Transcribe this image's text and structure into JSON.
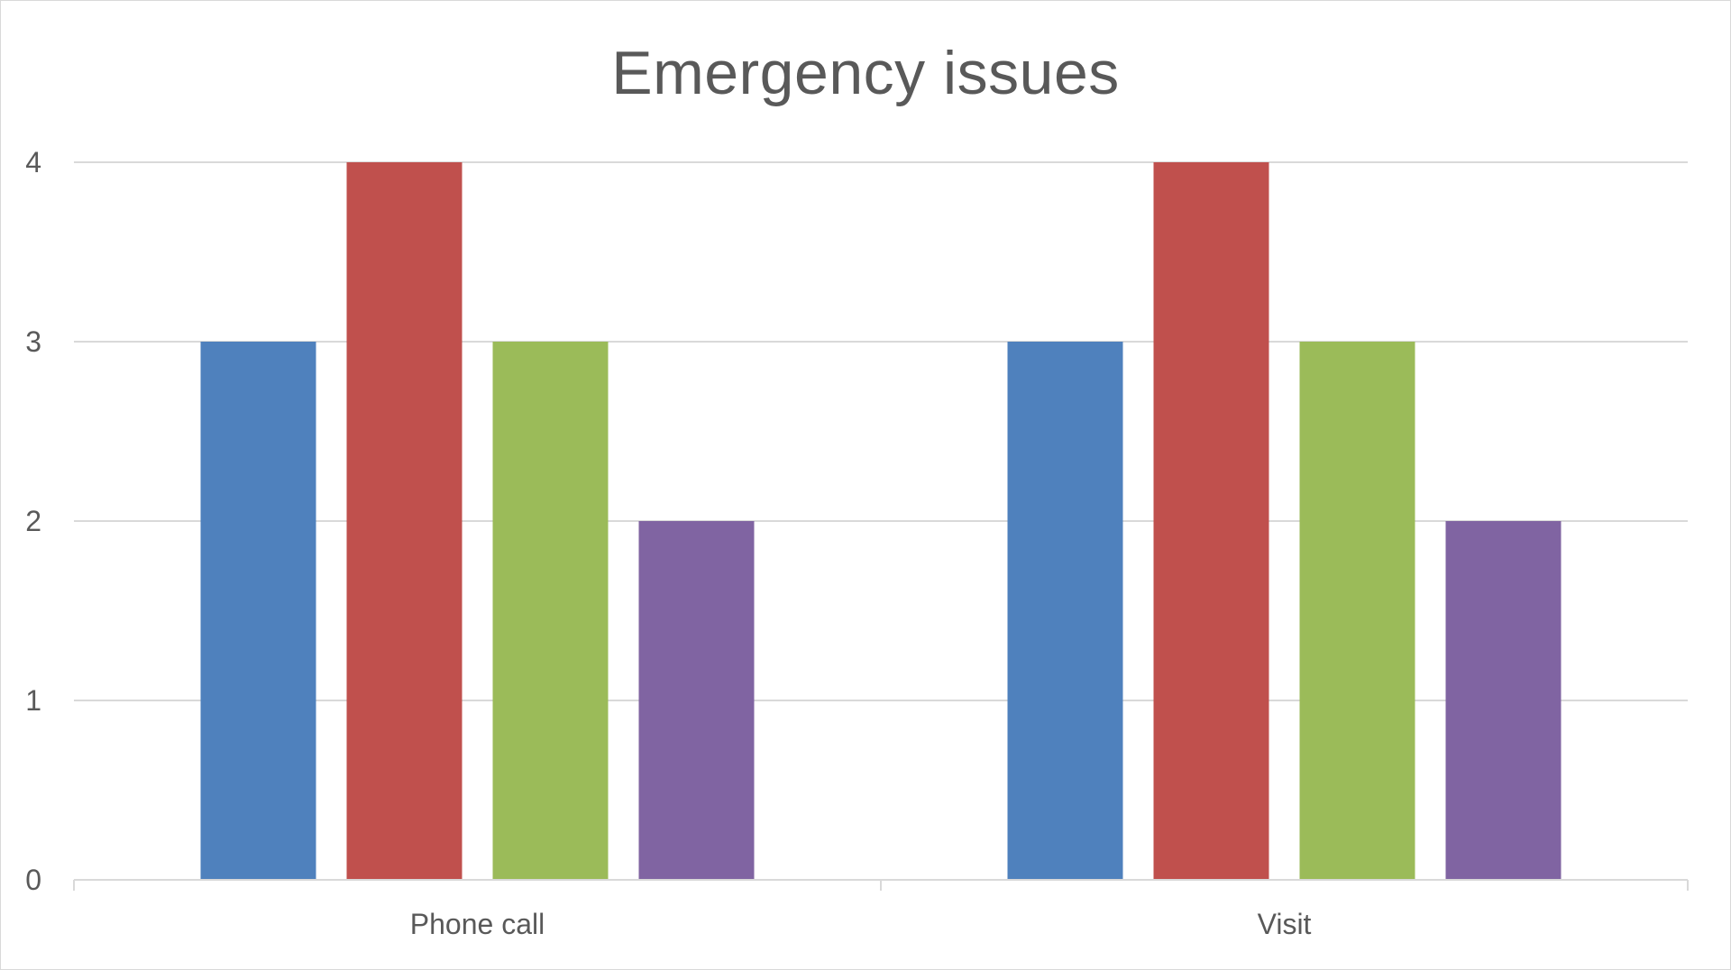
{
  "chart_data": {
    "type": "bar",
    "title": "Emergency issues",
    "categories": [
      "Phone call",
      "Visit"
    ],
    "series": [
      {
        "values": [
          3,
          3
        ],
        "color": "#4F81BD"
      },
      {
        "values": [
          4,
          4
        ],
        "color": "#C0504D"
      },
      {
        "values": [
          3,
          3
        ],
        "color": "#9BBB59"
      },
      {
        "values": [
          2,
          2
        ],
        "color": "#8064A2"
      }
    ],
    "ylim": [
      0,
      4
    ],
    "yticks": [
      "0",
      "1",
      "2",
      "3",
      "4"
    ],
    "grid": true,
    "legend": "none"
  }
}
